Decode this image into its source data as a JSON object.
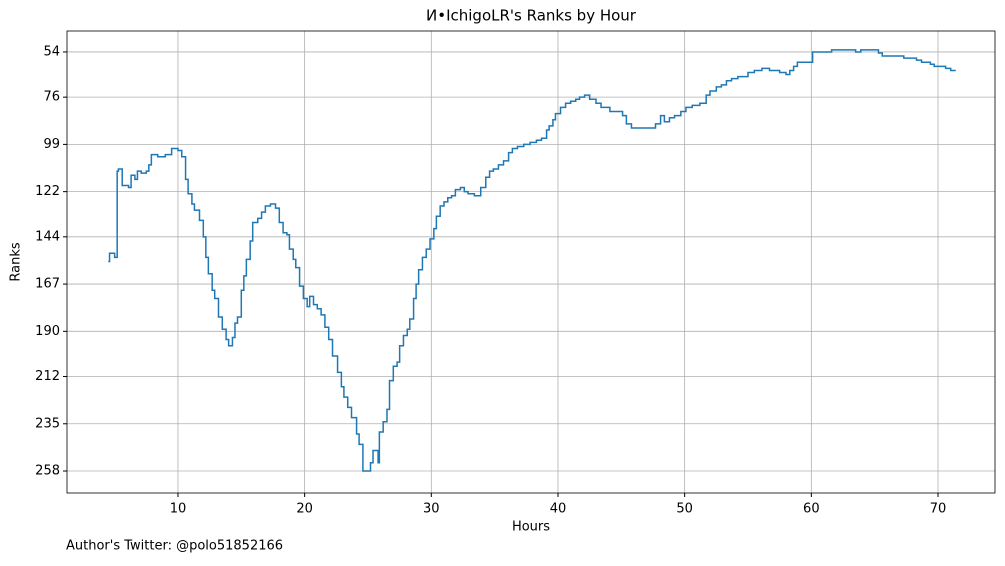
{
  "chart_data": {
    "type": "step",
    "title": "И•IchigoLR's Ranks by Hour",
    "xlabel": "Hours",
    "ylabel": "Ranks",
    "footnote": "Author's Twitter: @polo51852166",
    "x": [
      4.5,
      4.6,
      5.0,
      5.2,
      5.3,
      5.6,
      6.1,
      6.3,
      6.6,
      6.8,
      7.1,
      7.5,
      7.7,
      7.9,
      8.4,
      9.0,
      9.5,
      10.0,
      10.3,
      10.6,
      10.8,
      11.1,
      11.3,
      11.7,
      12.0,
      12.2,
      12.4,
      12.7,
      12.9,
      13.2,
      13.5,
      13.8,
      14.0,
      14.3,
      14.5,
      14.7,
      15.0,
      15.2,
      15.4,
      15.7,
      15.9,
      16.3,
      16.6,
      16.9,
      17.3,
      17.7,
      18.0,
      18.3,
      18.6,
      18.8,
      19.1,
      19.3,
      19.6,
      19.9,
      20.2,
      20.4,
      20.7,
      21.0,
      21.3,
      21.6,
      21.9,
      22.2,
      22.6,
      22.9,
      23.1,
      23.4,
      23.7,
      24.1,
      24.3,
      24.6,
      25.2,
      25.4,
      25.8,
      25.9,
      26.2,
      26.5,
      26.7,
      27.0,
      27.3,
      27.5,
      27.8,
      28.1,
      28.3,
      28.6,
      28.8,
      29.0,
      29.3,
      29.6,
      29.9,
      30.2,
      30.4,
      30.7,
      31.0,
      31.3,
      31.6,
      31.9,
      32.3,
      32.6,
      32.9,
      33.4,
      33.9,
      34.3,
      34.6,
      34.9,
      35.3,
      35.7,
      36.1,
      36.4,
      36.8,
      37.3,
      37.8,
      38.3,
      38.7,
      39.1,
      39.3,
      39.6,
      39.8,
      40.2,
      40.6,
      41.0,
      41.4,
      41.7,
      42.1,
      42.5,
      43.0,
      43.4,
      44.1,
      45.1,
      45.4,
      45.8,
      47.3,
      47.7,
      48.1,
      48.4,
      48.8,
      49.2,
      49.7,
      50.1,
      50.6,
      51.2,
      51.7,
      52.0,
      52.5,
      52.9,
      53.3,
      53.7,
      54.2,
      55.0,
      55.5,
      56.1,
      56.7,
      57.5,
      58.0,
      58.3,
      58.6,
      58.9,
      60.1,
      61.6,
      63.5,
      63.9,
      65.3,
      65.6,
      67.3,
      68.3,
      68.7,
      69.4,
      69.7,
      70.6,
      71.0,
      71.4
    ],
    "series": [
      {
        "name": "Rank",
        "color": "#1f77b4",
        "values": [
          156,
          152,
          154,
          112,
          111,
          119,
          120,
          114,
          116,
          112,
          113,
          112,
          109,
          104,
          105,
          104,
          101,
          102,
          105,
          116,
          123,
          128,
          131,
          136,
          144,
          154,
          162,
          170,
          174,
          183,
          189,
          194,
          197,
          193,
          186,
          183,
          170,
          163,
          155,
          146,
          137,
          135,
          132,
          129,
          128,
          130,
          137,
          142,
          143,
          150,
          155,
          159,
          168,
          174,
          178,
          173,
          177,
          179,
          182,
          188,
          194,
          202,
          210,
          217,
          222,
          227,
          232,
          240,
          245,
          258,
          254,
          248,
          254,
          239,
          234,
          228,
          214,
          207,
          205,
          197,
          192,
          189,
          184,
          174,
          167,
          160,
          154,
          150,
          145,
          140,
          134,
          129,
          127,
          125,
          124,
          121,
          120,
          122,
          123,
          124,
          120,
          115,
          112,
          111,
          109,
          107,
          103,
          101,
          100,
          99,
          98,
          97,
          96,
          92,
          90,
          87,
          84,
          81,
          79,
          78,
          77,
          76,
          75,
          77,
          79,
          81,
          83,
          85,
          89,
          91,
          91,
          89,
          85,
          88,
          86,
          85,
          83,
          81,
          80,
          79,
          75,
          73,
          71,
          70,
          68,
          67,
          66,
          64,
          63,
          62,
          63,
          64,
          65,
          63,
          61,
          59,
          54,
          53,
          54,
          53,
          54.5,
          56,
          57,
          58,
          59,
          60,
          61,
          62,
          63,
          63
        ]
      }
    ],
    "xlim": [
      1.24,
      74.5
    ],
    "ylim": [
      43.8,
      268.7
    ],
    "y_inverted": true,
    "xticks": [
      10,
      20,
      30,
      40,
      50,
      60,
      70
    ],
    "yticks": [
      54,
      76,
      99,
      122,
      144,
      167,
      190,
      212,
      235,
      258
    ],
    "grid": true
  }
}
